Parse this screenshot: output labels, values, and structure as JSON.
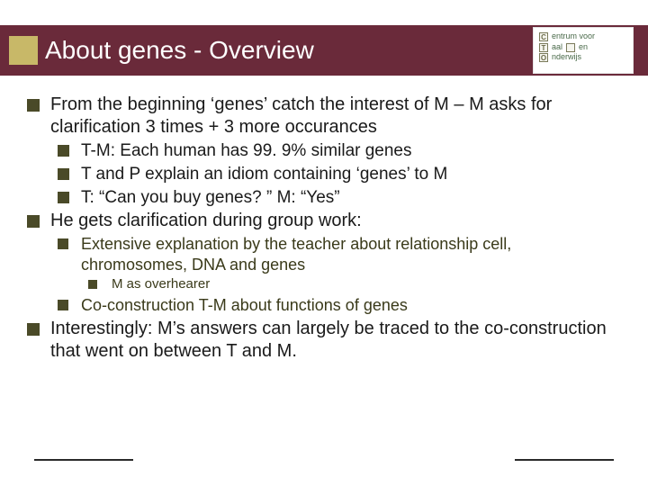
{
  "colors": {
    "title_bar_bg": "#6a2a3a",
    "gold_box": "#c8b868",
    "title_text": "#ffffff",
    "bullet": "#4a4a28",
    "body_text": "#1a1a1a",
    "sub_text": "#3a3a1a",
    "footer_line": "#2a2a2a",
    "background": "#ffffff"
  },
  "typography": {
    "title_fontsize": 28,
    "l1_fontsize": 20,
    "l2_fontsize": 19,
    "l3_fontsize": 18,
    "l4_fontsize": 15,
    "font_family": "Arial"
  },
  "title": "About genes - Overview",
  "logo": {
    "r1_letter": "C",
    "r1_text": "entrum voor",
    "r2_letter": "T",
    "r2_text": "aal",
    "r2_text_b": "en",
    "r3_letter": "O",
    "r3_text": "nderwijs"
  },
  "bullets": [
    {
      "text": "From the beginning ‘genes’ catch the interest of M – M asks for clarification 3 times + 3 more occurances",
      "children": [
        {
          "text": "T-M: Each human has 99. 9% similar genes"
        },
        {
          "text": "T and P explain an idiom containing ‘genes’ to M"
        },
        {
          "text": "T: “Can you buy genes? ” M: “Yes”"
        }
      ]
    },
    {
      "text": "He gets clarification during group work:",
      "children": [
        {
          "text": "Extensive explanation by the teacher about relationship cell, chromosomes, DNA and genes",
          "children": [
            {
              "text": "M as overhearer"
            }
          ]
        },
        {
          "text": "Co-construction T-M about functions of genes"
        }
      ]
    },
    {
      "text": "Interestingly: M’s answers can largely be traced to the co-construction that went on between T and M."
    }
  ]
}
